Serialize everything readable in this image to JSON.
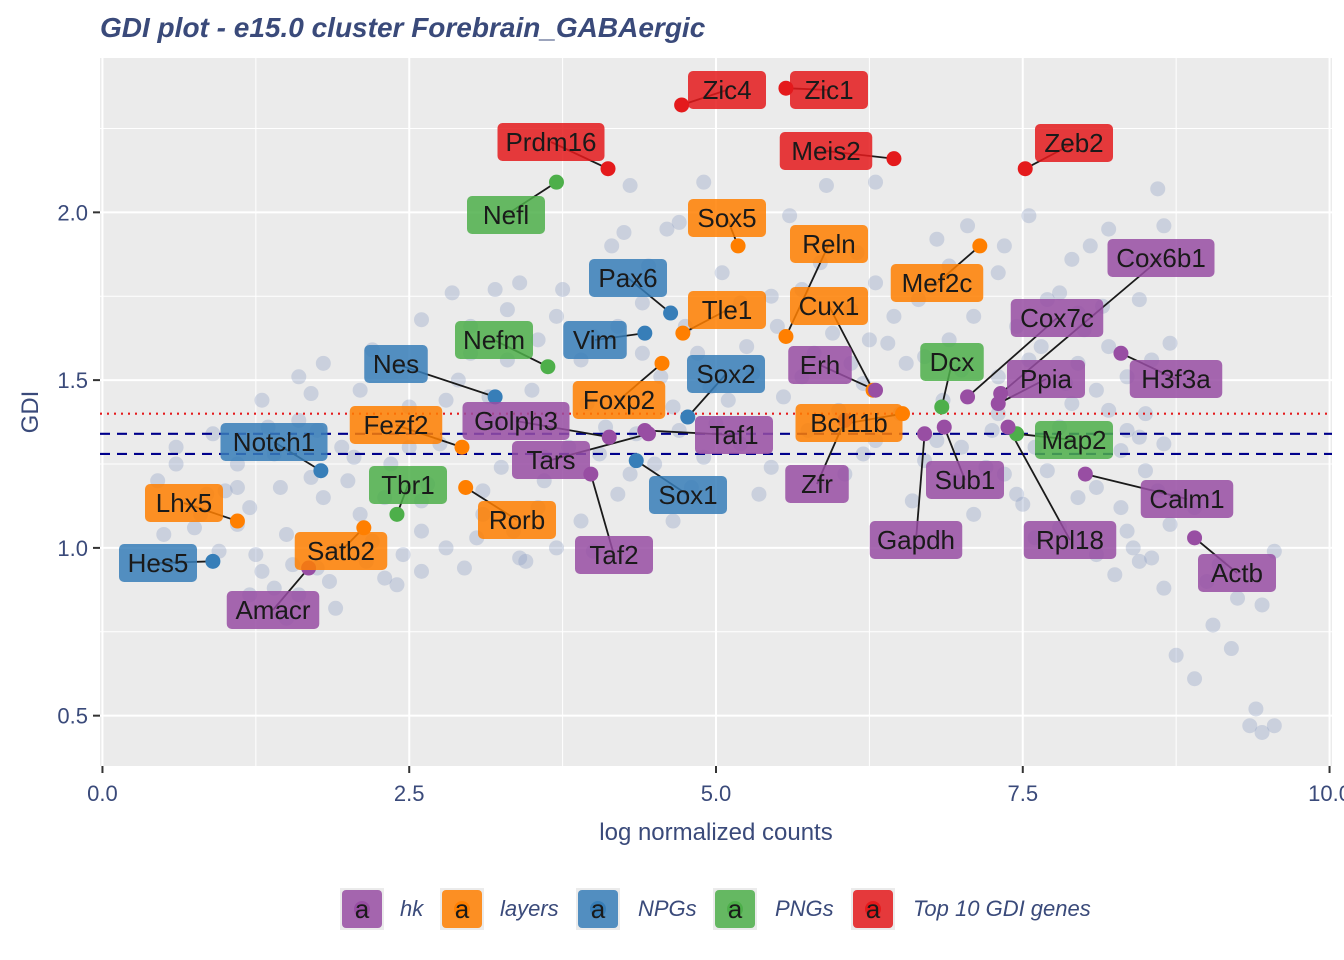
{
  "chart_data": {
    "type": "scatter",
    "title": "GDI plot - e15.0 cluster Forebrain_GABAergic",
    "xlabel": "log normalized counts",
    "ylabel": "GDI",
    "xlim": [
      -0.02,
      10.02
    ],
    "ylim": [
      0.35,
      2.46
    ],
    "x_ticks": [
      0,
      2.5,
      5,
      7.5,
      10
    ],
    "x_tick_labels": [
      "0.0",
      "2.5",
      "5.0",
      "7.5",
      "10.0"
    ],
    "y_ticks": [
      0.5,
      1,
      1.5,
      2
    ],
    "y_tick_labels": [
      "0.5",
      "1.0",
      "1.5",
      "2.0"
    ],
    "grid": true,
    "reference_lines": [
      {
        "y": 1.28,
        "style": "dashed",
        "color": "#00008b"
      },
      {
        "y": 1.34,
        "style": "dashed",
        "color": "#00008b"
      },
      {
        "y": 1.4,
        "style": "dotted",
        "color": "#e41a1c"
      }
    ],
    "background_color": "#8b9dc3",
    "legend_position": "bottom",
    "groups": [
      {
        "key": "hk",
        "label": "hk",
        "color": "#984ea3"
      },
      {
        "key": "layers",
        "label": "layers",
        "color": "#ff7f00"
      },
      {
        "key": "NPGs",
        "label": "NPGs",
        "color": "#377eb8"
      },
      {
        "key": "PNGs",
        "label": "PNGs",
        "color": "#4daf4a"
      },
      {
        "key": "top10",
        "label": "Top 10 GDI genes",
        "color": "#e41a1c"
      }
    ],
    "legend_key_glyph": "a",
    "background_points": [
      [
        9.55,
        0.47
      ],
      [
        9.4,
        0.52
      ],
      [
        9.35,
        0.47
      ],
      [
        9.45,
        0.45
      ],
      [
        9.2,
        0.7
      ],
      [
        9.05,
        0.77
      ],
      [
        8.75,
        0.68
      ],
      [
        8.9,
        0.61
      ],
      [
        8.65,
        0.88
      ],
      [
        8.55,
        0.97
      ],
      [
        8.4,
        1.0
      ],
      [
        8.35,
        1.05
      ],
      [
        8.6,
        1.17
      ],
      [
        8.3,
        1.29
      ],
      [
        8.5,
        1.23
      ],
      [
        8.2,
        1.41
      ],
      [
        8.55,
        1.56
      ],
      [
        8.7,
        1.61
      ],
      [
        8.45,
        1.74
      ],
      [
        8.4,
        1.85
      ],
      [
        8.6,
        2.07
      ],
      [
        8.65,
        1.96
      ],
      [
        8.2,
        1.95
      ],
      [
        7.9,
        1.86
      ],
      [
        8.05,
        1.9
      ],
      [
        7.3,
        1.82
      ],
      [
        7.7,
        1.74
      ],
      [
        6.3,
        2.09
      ],
      [
        5.9,
        2.08
      ],
      [
        5.6,
        1.99
      ],
      [
        4.9,
        2.09
      ],
      [
        4.3,
        2.08
      ],
      [
        3.4,
        1.79
      ],
      [
        3.2,
        1.77
      ],
      [
        3.0,
        1.58
      ],
      [
        2.6,
        1.68
      ],
      [
        2.2,
        1.59
      ],
      [
        1.8,
        1.55
      ],
      [
        1.6,
        1.51
      ],
      [
        1.3,
        1.44
      ],
      [
        0.9,
        1.34
      ],
      [
        0.6,
        1.25
      ],
      [
        0.45,
        1.2
      ],
      [
        0.6,
        1.3
      ],
      [
        1.0,
        1.17
      ],
      [
        1.1,
        1.18
      ],
      [
        0.8,
        1.1
      ],
      [
        0.5,
        1.04
      ],
      [
        3.0,
        1.66
      ],
      [
        3.3,
        1.71
      ],
      [
        4.7,
        1.97
      ],
      [
        4.6,
        1.95
      ],
      [
        7.05,
        1.96
      ],
      [
        7.55,
        1.99
      ],
      [
        7.8,
        1.76
      ],
      [
        6.9,
        1.84
      ],
      [
        7.1,
        1.69
      ],
      [
        7.55,
        1.56
      ],
      [
        7.3,
        1.51
      ],
      [
        7.9,
        1.43
      ],
      [
        8.1,
        1.47
      ],
      [
        7.8,
        1.36
      ],
      [
        7.95,
        1.55
      ],
      [
        8.0,
        1.65
      ],
      [
        8.2,
        1.6
      ],
      [
        8.15,
        1.72
      ],
      [
        8.45,
        1.33
      ],
      [
        8.1,
        1.18
      ],
      [
        8.3,
        1.12
      ],
      [
        7.8,
        1.06
      ],
      [
        7.5,
        1.13
      ],
      [
        7.6,
        1.03
      ],
      [
        8.1,
        0.98
      ],
      [
        8.25,
        0.92
      ],
      [
        7.95,
        1.15
      ],
      [
        7.2,
        1.24
      ],
      [
        6.8,
        1.32
      ],
      [
        6.5,
        1.4
      ],
      [
        6.2,
        1.49
      ],
      [
        5.8,
        1.58
      ],
      [
        5.5,
        1.66
      ],
      [
        5.2,
        1.73
      ],
      [
        5.7,
        1.77
      ],
      [
        6.1,
        1.71
      ],
      [
        6.4,
        1.61
      ],
      [
        6.7,
        1.57
      ],
      [
        7.0,
        1.53
      ],
      [
        7.3,
        1.4
      ],
      [
        3.6,
        1.2
      ],
      [
        3.1,
        1.1
      ],
      [
        2.6,
        1.05
      ],
      [
        2.2,
        1.02
      ],
      [
        1.9,
        0.99
      ],
      [
        3.9,
        1.08
      ],
      [
        4.2,
        1.16
      ],
      [
        4.5,
        1.25
      ],
      [
        5.0,
        1.37
      ],
      [
        3.4,
        0.97
      ],
      [
        2.4,
        0.89
      ],
      [
        1.5,
        0.79
      ],
      [
        1.9,
        0.82
      ],
      [
        2.8,
        1.0
      ],
      [
        1.8,
        1.15
      ],
      [
        1.7,
        1.21
      ],
      [
        1.4,
        1.28
      ],
      [
        2.2,
        1.37
      ],
      [
        2.5,
        1.3
      ],
      [
        2.8,
        1.44
      ],
      [
        3.5,
        1.47
      ],
      [
        4.0,
        1.63
      ],
      [
        4.2,
        1.66
      ],
      [
        4.4,
        1.73
      ],
      [
        3.7,
        1.69
      ],
      [
        3.3,
        1.56
      ],
      [
        2.9,
        1.5
      ],
      [
        2.0,
        1.2
      ],
      [
        2.3,
        1.15
      ],
      [
        1.1,
        1.07
      ],
      [
        1.3,
        0.93
      ],
      [
        1.6,
        0.86
      ],
      [
        9.55,
        0.99
      ],
      [
        9.0,
        0.9
      ],
      [
        8.35,
        1.35
      ],
      [
        6.3,
        1.79
      ],
      [
        6.55,
        1.55
      ],
      [
        7.35,
        1.22
      ],
      [
        8.75,
        1.15
      ],
      [
        6.9,
        1.62
      ],
      [
        6.45,
        1.69
      ],
      [
        5.45,
        1.75
      ],
      [
        5.95,
        1.64
      ],
      [
        4.85,
        1.58
      ],
      [
        5.3,
        1.52
      ],
      [
        4.95,
        1.48
      ],
      [
        4.65,
        1.42
      ],
      [
        6.0,
        1.41
      ],
      [
        7.0,
        1.3
      ],
      [
        5.75,
        1.35
      ],
      [
        6.3,
        1.32
      ],
      [
        6.7,
        1.26
      ],
      [
        7.45,
        1.16
      ],
      [
        3.8,
        1.3
      ],
      [
        4.1,
        1.36
      ],
      [
        3.25,
        1.24
      ],
      [
        2.65,
        1.19
      ],
      [
        2.1,
        1.1
      ],
      [
        1.5,
        1.04
      ],
      [
        1.25,
        0.98
      ],
      [
        0.95,
        0.99
      ],
      [
        0.75,
        1.06
      ],
      [
        1.75,
        0.94
      ],
      [
        2.45,
        0.98
      ],
      [
        3.05,
        1.03
      ],
      [
        3.55,
        1.12
      ],
      [
        4.3,
        1.22
      ],
      [
        5.2,
        1.31
      ],
      [
        5.55,
        1.45
      ],
      [
        4.55,
        1.51
      ],
      [
        3.95,
        1.43
      ],
      [
        3.2,
        1.37
      ],
      [
        2.75,
        1.31
      ],
      [
        2.35,
        1.25
      ],
      [
        1.95,
        1.3
      ],
      [
        1.6,
        1.38
      ],
      [
        1.1,
        1.25
      ],
      [
        0.85,
        1.16
      ],
      [
        4.15,
        1.9
      ],
      [
        2.85,
        1.76
      ],
      [
        1.75,
        1.35
      ],
      [
        1.45,
        1.18
      ],
      [
        1.2,
        1.12
      ],
      [
        1.55,
        0.95
      ],
      [
        1.85,
        0.9
      ],
      [
        2.15,
        0.96
      ],
      [
        2.6,
        0.93
      ],
      [
        3.35,
        1.05
      ],
      [
        3.7,
        1.0
      ],
      [
        4.8,
        1.18
      ],
      [
        4.9,
        1.27
      ],
      [
        5.45,
        1.24
      ],
      [
        6.05,
        1.22
      ],
      [
        6.6,
        1.14
      ],
      [
        7.1,
        1.1
      ],
      [
        7.7,
        1.23
      ],
      [
        7.25,
        1.35
      ],
      [
        6.85,
        1.44
      ],
      [
        6.1,
        1.55
      ],
      [
        5.25,
        1.6
      ],
      [
        4.75,
        1.66
      ],
      [
        4.4,
        1.58
      ],
      [
        3.9,
        1.56
      ],
      [
        3.55,
        1.62
      ],
      [
        3.15,
        1.45
      ],
      [
        2.5,
        1.42
      ],
      [
        2.1,
        1.47
      ],
      [
        1.7,
        1.46
      ],
      [
        1.35,
        1.36
      ],
      [
        2.05,
        1.27
      ],
      [
        2.6,
        1.14
      ],
      [
        3.1,
        1.17
      ],
      [
        3.6,
        1.27
      ],
      [
        4.05,
        1.28
      ],
      [
        4.35,
        1.34
      ],
      [
        4.7,
        1.35
      ],
      [
        5.1,
        1.44
      ],
      [
        5.7,
        1.51
      ],
      [
        6.25,
        1.62
      ],
      [
        6.65,
        1.74
      ],
      [
        7.45,
        1.66
      ],
      [
        7.65,
        1.6
      ],
      [
        7.85,
        1.49
      ],
      [
        7.6,
        1.3
      ],
      [
        6.95,
        1.2
      ],
      [
        6.2,
        1.28
      ],
      [
        5.35,
        1.16
      ],
      [
        4.65,
        1.08
      ],
      [
        4.0,
        0.99
      ],
      [
        3.45,
        0.96
      ],
      [
        2.95,
        0.94
      ],
      [
        2.3,
        0.91
      ],
      [
        1.4,
        0.88
      ],
      [
        1.2,
        0.86
      ],
      [
        5.85,
        1.85
      ],
      [
        6.15,
        1.88
      ],
      [
        5.05,
        1.82
      ],
      [
        4.45,
        1.84
      ],
      [
        3.75,
        1.77
      ],
      [
        4.25,
        1.94
      ],
      [
        6.8,
        1.92
      ],
      [
        7.35,
        1.9
      ],
      [
        7.95,
        1.7
      ],
      [
        8.35,
        1.51
      ],
      [
        8.5,
        1.4
      ],
      [
        8.65,
        1.31
      ],
      [
        8.7,
        1.07
      ],
      [
        8.45,
        0.96
      ],
      [
        8.9,
        1.12
      ],
      [
        9.1,
        0.95
      ],
      [
        9.25,
        0.85
      ],
      [
        9.45,
        0.83
      ]
    ],
    "labeled_genes": [
      {
        "gene": "Zic4",
        "group": "top10",
        "x": 4.72,
        "y": 2.32
      },
      {
        "gene": "Zic1",
        "group": "top10",
        "x": 5.57,
        "y": 2.37
      },
      {
        "gene": "Prdm16",
        "group": "top10",
        "x": 4.12,
        "y": 2.13
      },
      {
        "gene": "Meis2",
        "group": "top10",
        "x": 6.45,
        "y": 2.16
      },
      {
        "gene": "Zeb2",
        "group": "top10",
        "x": 7.52,
        "y": 2.13
      },
      {
        "gene": "Nefl",
        "group": "PNGs",
        "x": 3.7,
        "y": 2.09
      },
      {
        "gene": "Sox5",
        "group": "layers",
        "x": 5.18,
        "y": 1.9
      },
      {
        "gene": "Reln",
        "group": "layers",
        "x": 5.57,
        "y": 1.63
      },
      {
        "gene": "Cox6b1",
        "group": "hk",
        "x": 7.32,
        "y": 1.46
      },
      {
        "gene": "Pax6",
        "group": "NPGs",
        "x": 4.63,
        "y": 1.7
      },
      {
        "gene": "Mef2c",
        "group": "layers",
        "x": 7.15,
        "y": 1.9
      },
      {
        "gene": "Tle1",
        "group": "layers",
        "x": 4.73,
        "y": 1.64
      },
      {
        "gene": "Cux1",
        "group": "layers",
        "x": 6.28,
        "y": 1.47
      },
      {
        "gene": "Cox7c",
        "group": "hk",
        "x": 7.05,
        "y": 1.45
      },
      {
        "gene": "Nefm",
        "group": "PNGs",
        "x": 3.63,
        "y": 1.54
      },
      {
        "gene": "Vim",
        "group": "NPGs",
        "x": 4.42,
        "y": 1.64
      },
      {
        "gene": "Erh",
        "group": "hk",
        "x": 6.3,
        "y": 1.47
      },
      {
        "gene": "H3f3a",
        "group": "hk",
        "x": 8.3,
        "y": 1.58
      },
      {
        "gene": "Nes",
        "group": "NPGs",
        "x": 3.2,
        "y": 1.45
      },
      {
        "gene": "Sox2",
        "group": "NPGs",
        "x": 4.77,
        "y": 1.39
      },
      {
        "gene": "Dcx",
        "group": "PNGs",
        "x": 6.84,
        "y": 1.42
      },
      {
        "gene": "Ppia",
        "group": "hk",
        "x": 7.3,
        "y": 1.43
      },
      {
        "gene": "Foxp2",
        "group": "layers",
        "x": 4.56,
        "y": 1.55
      },
      {
        "gene": "Golph3",
        "group": "hk",
        "x": 4.13,
        "y": 1.33
      },
      {
        "gene": "Fezf2",
        "group": "layers",
        "x": 2.93,
        "y": 1.3
      },
      {
        "gene": "Taf1",
        "group": "hk",
        "x": 4.42,
        "y": 1.35
      },
      {
        "gene": "Bcl11b",
        "group": "layers",
        "x": 6.52,
        "y": 1.4
      },
      {
        "gene": "Notch1",
        "group": "NPGs",
        "x": 1.78,
        "y": 1.23
      },
      {
        "gene": "Map2",
        "group": "PNGs",
        "x": 7.45,
        "y": 1.34
      },
      {
        "gene": "Tars",
        "group": "hk",
        "x": 4.45,
        "y": 1.34
      },
      {
        "gene": "Zfr",
        "group": "hk",
        "x": 6.05,
        "y": 1.38
      },
      {
        "gene": "Sub1",
        "group": "hk",
        "x": 6.86,
        "y": 1.36
      },
      {
        "gene": "Tbr1",
        "group": "PNGs",
        "x": 2.4,
        "y": 1.1
      },
      {
        "gene": "Sox1",
        "group": "NPGs",
        "x": 4.35,
        "y": 1.26
      },
      {
        "gene": "Lhx5",
        "group": "layers",
        "x": 1.1,
        "y": 1.08
      },
      {
        "gene": "Rorb",
        "group": "layers",
        "x": 2.96,
        "y": 1.18
      },
      {
        "gene": "Calm1",
        "group": "hk",
        "x": 8.01,
        "y": 1.22
      },
      {
        "gene": "Gapdh",
        "group": "hk",
        "x": 6.7,
        "y": 1.34
      },
      {
        "gene": "Rpl18",
        "group": "hk",
        "x": 7.38,
        "y": 1.36
      },
      {
        "gene": "Taf2",
        "group": "hk",
        "x": 3.98,
        "y": 1.22
      },
      {
        "gene": "Satb2",
        "group": "layers",
        "x": 2.13,
        "y": 1.06
      },
      {
        "gene": "Hes5",
        "group": "NPGs",
        "x": 0.9,
        "y": 0.96
      },
      {
        "gene": "Actb",
        "group": "hk",
        "x": 8.9,
        "y": 1.03
      },
      {
        "gene": "Amacr",
        "group": "hk",
        "x": 1.68,
        "y": 0.94
      }
    ]
  }
}
